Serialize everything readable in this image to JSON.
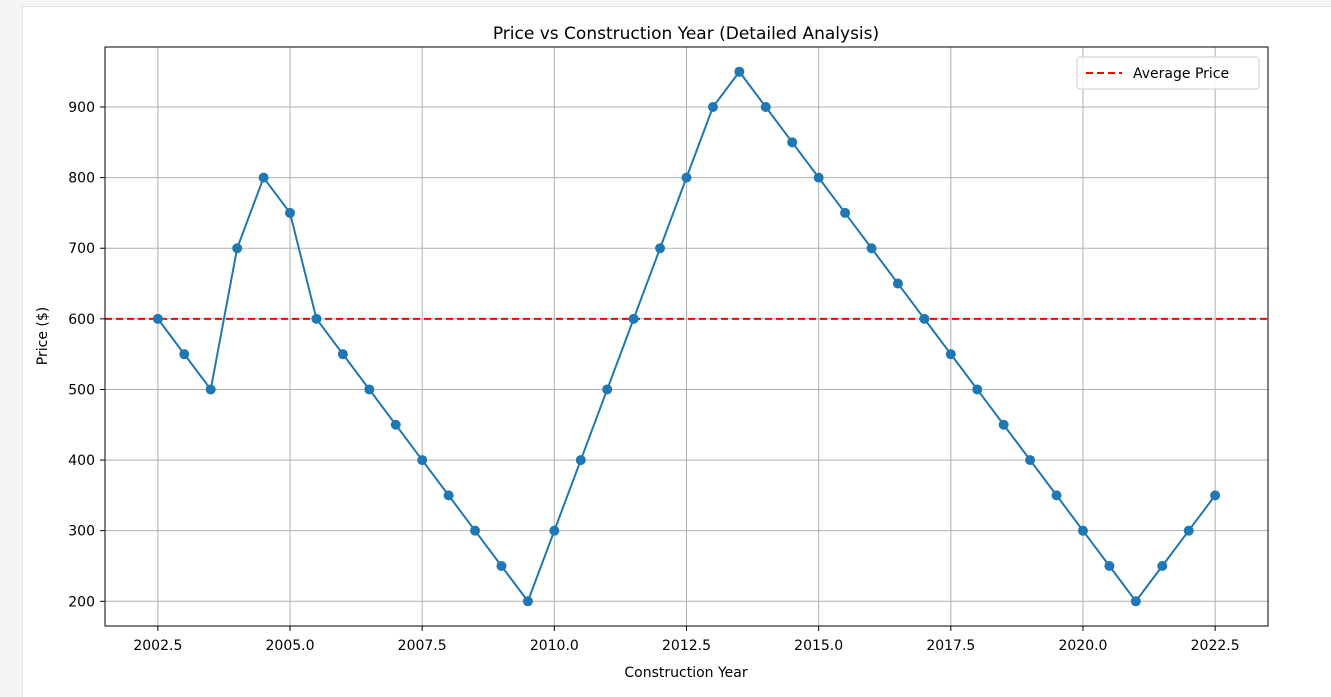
{
  "chart_data": {
    "type": "line",
    "title": "Price vs Construction Year (Detailed Analysis)",
    "xlabel": "Construction Year",
    "ylabel": "Price ($)",
    "xlim": [
      2001.5,
      2023.5
    ],
    "ylim": [
      165,
      985
    ],
    "xticks": [
      2002.5,
      2005.0,
      2007.5,
      2010.0,
      2012.5,
      2015.0,
      2017.5,
      2020.0,
      2022.5
    ],
    "xtick_labels": [
      "2002.5",
      "2005.0",
      "2007.5",
      "2010.0",
      "2012.5",
      "2015.0",
      "2017.5",
      "2020.0",
      "2022.5"
    ],
    "yticks": [
      200,
      300,
      400,
      500,
      600,
      700,
      800,
      900
    ],
    "ytick_labels": [
      "200",
      "300",
      "400",
      "500",
      "600",
      "700",
      "800",
      "900"
    ],
    "grid": true,
    "legend_position": "top-right",
    "series": [
      {
        "color": "#1f77b4",
        "marker": "circle",
        "x": [
          2002.5,
          2003.0,
          2003.5,
          2004.0,
          2004.5,
          2005.0,
          2005.5,
          2006.0,
          2006.5,
          2007.0,
          2007.5,
          2008.0,
          2008.5,
          2009.0,
          2009.5,
          2010.0,
          2010.5,
          2011.0,
          2011.5,
          2012.0,
          2012.5,
          2013.0,
          2013.5,
          2014.0,
          2014.5,
          2015.0,
          2015.5,
          2016.0,
          2016.5,
          2017.0,
          2017.5,
          2018.0,
          2018.5,
          2019.0,
          2019.5,
          2020.0,
          2020.5,
          2021.0,
          2021.5,
          2022.0,
          2022.5
        ],
        "y": [
          600,
          550,
          500,
          700,
          800,
          750,
          600,
          550,
          500,
          450,
          400,
          350,
          300,
          250,
          200,
          300,
          400,
          500,
          600,
          700,
          800,
          900,
          950,
          900,
          850,
          800,
          750,
          700,
          650,
          600,
          550,
          500,
          450,
          400,
          350,
          300,
          250,
          200,
          250,
          300,
          350
        ]
      }
    ],
    "reference_lines": [
      {
        "name": "Average Price",
        "orientation": "horizontal",
        "value": 600,
        "color": "#ff0000",
        "style": "dashed"
      }
    ]
  }
}
